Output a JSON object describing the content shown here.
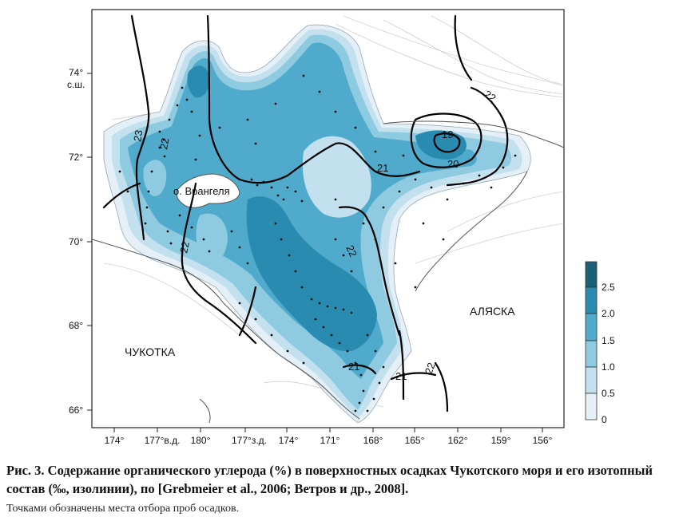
{
  "map": {
    "lat_labels": [
      "74°",
      "72°",
      "70°",
      "68°",
      "66°"
    ],
    "lat_unit": "с.ш.",
    "lon_labels": [
      "174°",
      "177°в.д.",
      "180°",
      "177°з.д.",
      "174°",
      "171°",
      "168°",
      "165°",
      "162°",
      "159°",
      "156°"
    ],
    "places": {
      "wrangel": "о. Врангеля",
      "chukotka": "ЧУКОТКА",
      "alaska": "АЛЯСКА"
    },
    "isoline_labels": [
      "23",
      "22",
      "22",
      "21",
      "22",
      "20",
      "19",
      "22",
      "21",
      "21",
      "22"
    ],
    "colors": {
      "land": "#ffffff",
      "level_0": "#e4eff7",
      "level_05": "#c3e0ee",
      "level_1": "#8ecae0",
      "level_15": "#4faacb",
      "level_2": "#2a8bb0",
      "level_25": "#1c6078"
    }
  },
  "legend": {
    "ticks": [
      "2.5",
      "2.0",
      "1.5",
      "1.0",
      "0.5",
      "0"
    ]
  },
  "caption": {
    "text": "Рис. 3. Содержание органического углерода (%) в поверхностных осадках Чукотского моря и его изотопный состав (‰, изолинии), по [Grebmeier et al., 2006; Ветров и др., 2008].",
    "note": "Точками обозначены места отбора проб осадков."
  }
}
